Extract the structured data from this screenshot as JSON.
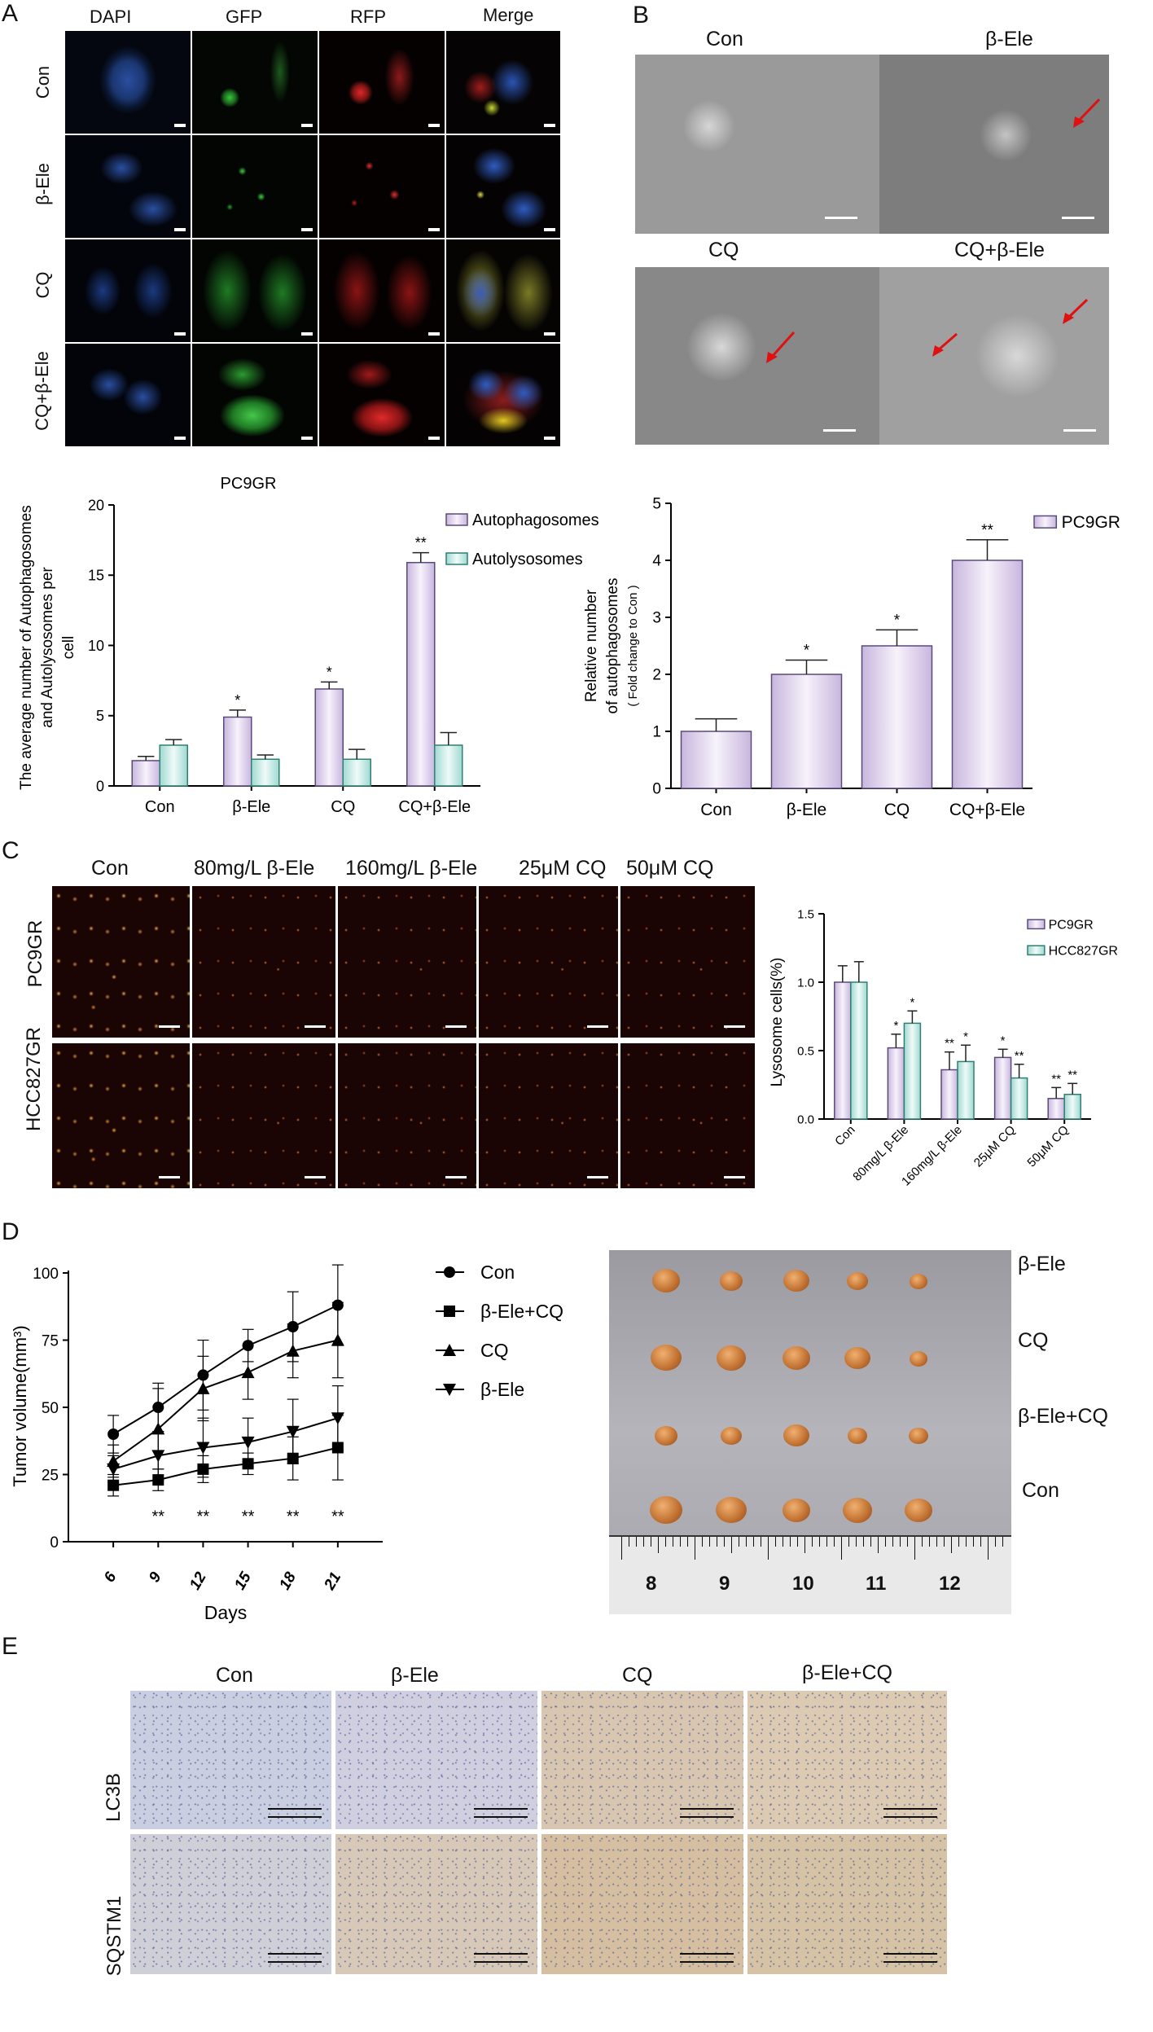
{
  "panels": {
    "A": "A",
    "B": "B",
    "C": "C",
    "D": "D",
    "E": "E"
  },
  "panelA": {
    "columns": [
      "DAPI",
      "GFP",
      "RFP",
      "Merge"
    ],
    "rows": [
      "Con",
      "β-Ele",
      "CQ",
      "CQ+β-Ele"
    ]
  },
  "panelB": {
    "labels": [
      "Con",
      "β-Ele",
      "CQ",
      "CQ+β-Ele"
    ]
  },
  "panelC": {
    "columns": [
      "Con",
      "80mg/L β-Ele",
      "160mg/L β-Ele",
      "25μM CQ",
      "50μM CQ"
    ],
    "rows": [
      "PC9GR",
      "HCC827GR"
    ]
  },
  "panelD": {
    "plate_rows": [
      "β-Ele",
      "CQ",
      "β-Ele+CQ",
      "Con"
    ],
    "ruler": [
      "8",
      "9",
      "10",
      "11",
      "12"
    ]
  },
  "panelE": {
    "columns": [
      "Con",
      "β-Ele",
      "CQ",
      "β-Ele+CQ"
    ],
    "rows": [
      "LC3B",
      "SQSTM1"
    ]
  },
  "colors": {
    "purple": "#e6dcef",
    "purple_edge": "#5a4a7a",
    "teal": "#cdeee9",
    "teal_edge": "#2f7f74"
  },
  "chart_data": [
    {
      "type": "bar",
      "title": "PC9GR",
      "ylabel": "The average number of Autophagosomes and Autolysosomes per cell",
      "categories": [
        "Con",
        "β-Ele",
        "CQ",
        "CQ+β-Ele"
      ],
      "ylim": [
        0,
        20
      ],
      "yticks": [
        "0",
        "5",
        "10",
        "15",
        "20"
      ],
      "legend_position": "top-right",
      "series": [
        {
          "name": "Autophagosomes",
          "values": [
            1.8,
            4.9,
            6.9,
            15.9
          ],
          "errors": [
            0.3,
            0.5,
            0.5,
            0.7
          ],
          "sig": [
            "",
            "*",
            "*",
            "**"
          ]
        },
        {
          "name": "Autolysosomes",
          "values": [
            2.9,
            1.9,
            1.9,
            2.9
          ],
          "errors": [
            0.4,
            0.3,
            0.7,
            0.9
          ],
          "sig": [
            "",
            "",
            "",
            ""
          ]
        }
      ]
    },
    {
      "type": "bar",
      "title": "",
      "ylabel": "Relative number of autophagosomes",
      "ylabel2": "( Fold change to Con )",
      "categories": [
        "Con",
        "β-Ele",
        "CQ",
        "CQ+β-Ele"
      ],
      "ylim": [
        0,
        5
      ],
      "yticks": [
        "0",
        "1",
        "2",
        "3",
        "4",
        "5"
      ],
      "legend_position": "top-right",
      "series": [
        {
          "name": "PC9GR",
          "values": [
            1.0,
            2.0,
            2.5,
            4.0
          ],
          "errors": [
            0.22,
            0.25,
            0.28,
            0.36
          ],
          "sig": [
            "",
            "*",
            "*",
            "**"
          ]
        }
      ]
    },
    {
      "type": "bar",
      "title": "",
      "ylabel": "Lysosome cells(%)",
      "categories": [
        "Con",
        "80mg/L β-Ele",
        "160mg/L β-Ele",
        "25μM CQ",
        "50μM CQ"
      ],
      "ylim": [
        0,
        1.5
      ],
      "yticks": [
        "0.0",
        "0.5",
        "1.0",
        "1.5"
      ],
      "legend_position": "top-right",
      "series": [
        {
          "name": "PC9GR",
          "values": [
            1.0,
            0.52,
            0.36,
            0.45,
            0.15
          ],
          "errors": [
            0.12,
            0.1,
            0.13,
            0.06,
            0.08
          ],
          "sig": [
            "",
            "*",
            "**",
            "*",
            "**"
          ]
        },
        {
          "name": "HCC827GR",
          "values": [
            1.0,
            0.7,
            0.42,
            0.3,
            0.18
          ],
          "errors": [
            0.15,
            0.09,
            0.12,
            0.1,
            0.08
          ],
          "sig": [
            "",
            "*",
            "*",
            "**",
            "**"
          ]
        }
      ]
    },
    {
      "type": "line",
      "title": "",
      "xlabel": "Days",
      "ylabel": "Tumor volume(mm³)",
      "x": [
        6,
        9,
        12,
        15,
        18,
        21
      ],
      "xticks": [
        "6",
        "9",
        "12",
        "15",
        "18",
        "21"
      ],
      "ylim": [
        0,
        110
      ],
      "yticks": [
        "0",
        "25",
        "50",
        "75",
        "100"
      ],
      "legend_position": "right",
      "sig": [
        "",
        "**",
        "**",
        "**",
        "**",
        "**"
      ],
      "series": [
        {
          "name": "Con",
          "marker": "circle",
          "values": [
            40,
            50,
            62,
            73,
            80,
            88
          ],
          "errors": [
            7,
            9,
            13,
            6,
            13,
            15
          ]
        },
        {
          "name": "β-Ele+CQ",
          "marker": "square",
          "values": [
            21,
            23,
            27,
            29,
            31,
            35
          ],
          "errors": [
            4,
            4,
            5,
            4,
            8,
            12
          ]
        },
        {
          "name": "CQ",
          "marker": "triangle",
          "values": [
            30,
            42,
            57,
            63,
            71,
            75
          ],
          "errors": [
            6,
            15,
            12,
            10,
            10,
            14
          ]
        },
        {
          "name": "β-Ele",
          "marker": "triangle-down",
          "values": [
            27,
            32,
            35,
            37,
            41,
            46
          ],
          "errors": [
            5,
            9,
            11,
            9,
            12,
            12
          ]
        }
      ]
    }
  ]
}
